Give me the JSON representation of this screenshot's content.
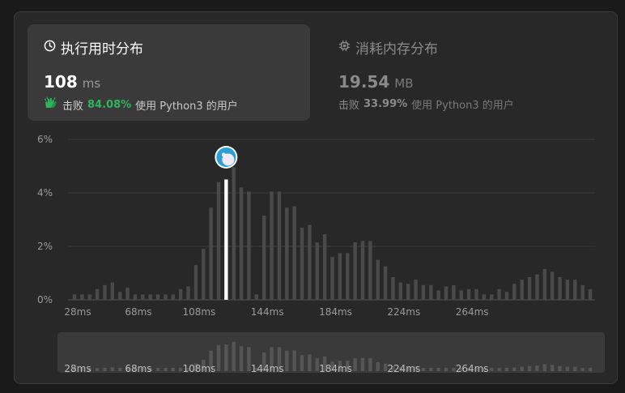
{
  "tabs": [
    {
      "title": "执行用时分布",
      "value": "108",
      "unit": "ms",
      "beat_label": "击败",
      "beat_pct": "84.08%",
      "beat_suffix": "使用 Python3 的用户",
      "icon": "clock-icon"
    },
    {
      "title": "消耗内存分布",
      "value": "19.54",
      "unit": "MB",
      "beat_label": "击败",
      "beat_pct": "33.99%",
      "beat_suffix": "使用 Python3 的用户",
      "icon": "chip-icon"
    }
  ],
  "colors": {
    "bar": "#4a4a4a",
    "highlight": "#ffffff",
    "accent_green": "#2db55d",
    "grid": "#3c3c3c",
    "brush_bg": "#3a3a3a"
  },
  "chart_data": {
    "type": "bar",
    "ylim": [
      0,
      6
    ],
    "y_ticks": [
      "0%",
      "2%",
      "4%",
      "6%"
    ],
    "x_ticks": [
      "28ms",
      "68ms",
      "108ms",
      "144ms",
      "184ms",
      "224ms",
      "264ms"
    ],
    "highlight_index": 20,
    "values": [
      0.2,
      0.2,
      0.2,
      0.4,
      0.55,
      0.65,
      0.3,
      0.45,
      0.2,
      0.2,
      0.2,
      0.2,
      0.2,
      0.2,
      0.4,
      0.5,
      1.3,
      1.9,
      3.45,
      4.4,
      4.5,
      4.95,
      4.2,
      4.05,
      0.2,
      3.15,
      4.05,
      4.05,
      3.45,
      3.5,
      2.7,
      2.8,
      2.15,
      2.45,
      1.6,
      1.75,
      1.75,
      2.15,
      2.2,
      2.2,
      1.5,
      1.25,
      0.85,
      0.65,
      0.6,
      0.75,
      0.55,
      0.55,
      0.35,
      0.5,
      0.55,
      0.35,
      0.4,
      0.4,
      0.2,
      0.2,
      0.4,
      0.3,
      0.6,
      0.75,
      0.85,
      0.95,
      1.15,
      1.05,
      0.85,
      0.75,
      0.75,
      0.55,
      0.4
    ]
  }
}
